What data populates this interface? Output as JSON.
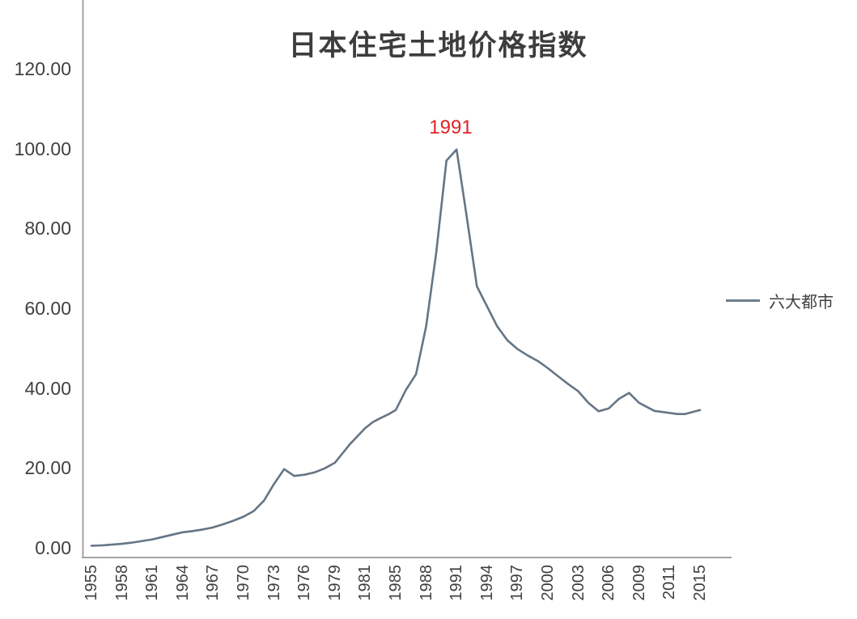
{
  "chart_data": {
    "type": "line",
    "title": "日本住宅土地价格指数",
    "annotation": {
      "text": "1991",
      "at_year": 1991,
      "color": "#e02128"
    },
    "legend_position": "right",
    "grid": false,
    "axis_color": "#a3a3a3",
    "ylim": [
      0,
      120
    ],
    "y_ticks": [
      0,
      20,
      40,
      60,
      80,
      100,
      120
    ],
    "y_tick_labels": [
      "0.00",
      "20.00",
      "40.00",
      "60.00",
      "80.00",
      "100.00",
      "120.00"
    ],
    "x_tick_labels": [
      "1955",
      "1958",
      "1961",
      "1964",
      "1967",
      "1970",
      "1973",
      "1976",
      "1979",
      "1981",
      "1985",
      "1988",
      "1991",
      "1994",
      "1997",
      "2000",
      "2003",
      "2006",
      "2009",
      "2011",
      "2015"
    ],
    "series": [
      {
        "name": "六大都市",
        "color": "#657584",
        "legend_line_color": "#6e7e8c",
        "points": [
          [
            1955,
            0.5
          ],
          [
            1956,
            0.6
          ],
          [
            1957,
            0.8
          ],
          [
            1958,
            1.0
          ],
          [
            1959,
            1.3
          ],
          [
            1960,
            1.7
          ],
          [
            1961,
            2.1
          ],
          [
            1962,
            2.7
          ],
          [
            1963,
            3.3
          ],
          [
            1964,
            3.9
          ],
          [
            1965,
            4.2
          ],
          [
            1966,
            4.6
          ],
          [
            1967,
            5.1
          ],
          [
            1968,
            5.9
          ],
          [
            1969,
            6.8
          ],
          [
            1970,
            7.8
          ],
          [
            1971,
            9.2
          ],
          [
            1972,
            11.8
          ],
          [
            1973,
            16.0
          ],
          [
            1974,
            19.7
          ],
          [
            1975,
            18.0
          ],
          [
            1976,
            18.3
          ],
          [
            1977,
            18.9
          ],
          [
            1978,
            19.9
          ],
          [
            1979,
            21.3
          ],
          [
            1980,
            26.0
          ],
          [
            1981,
            30.0
          ],
          [
            1982,
            31.5
          ],
          [
            1983,
            32.5
          ],
          [
            1984,
            33.4
          ],
          [
            1985,
            34.5
          ],
          [
            1986,
            39.5
          ],
          [
            1987,
            43.5
          ],
          [
            1988,
            55.5
          ],
          [
            1989,
            74.0
          ],
          [
            1990,
            97.0
          ],
          [
            1991,
            99.8
          ],
          [
            1992,
            83.0
          ],
          [
            1993,
            65.5
          ],
          [
            1994,
            60.5
          ],
          [
            1995,
            55.5
          ],
          [
            1996,
            52.0
          ],
          [
            1997,
            49.8
          ],
          [
            1998,
            48.2
          ],
          [
            1999,
            46.8
          ],
          [
            2000,
            45.0
          ],
          [
            2001,
            43.0
          ],
          [
            2002,
            41.0
          ],
          [
            2003,
            39.2
          ],
          [
            2004,
            36.3
          ],
          [
            2005,
            34.2
          ],
          [
            2006,
            34.9
          ],
          [
            2007,
            37.3
          ],
          [
            2008,
            38.8
          ],
          [
            2009,
            36.3
          ],
          [
            2010,
            34.3
          ],
          [
            2011,
            33.8
          ],
          [
            2012,
            33.5
          ],
          [
            2013,
            33.5
          ],
          [
            2014,
            34.0
          ],
          [
            2015,
            34.5
          ]
        ]
      }
    ]
  }
}
